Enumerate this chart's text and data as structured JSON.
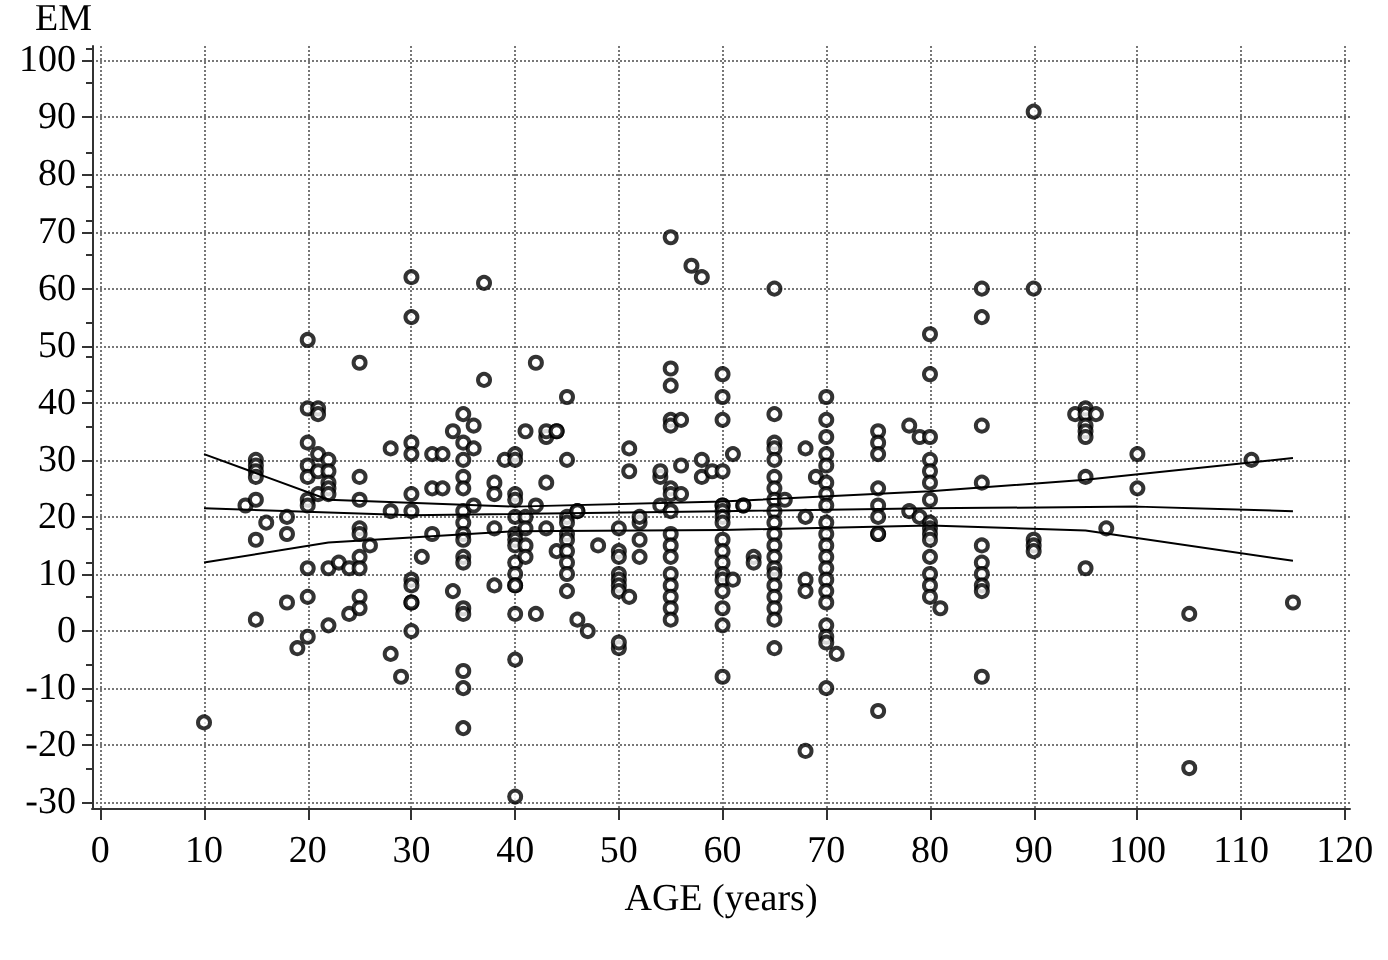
{
  "chart_data": {
    "type": "scatter",
    "xlabel": "AGE (years)",
    "ylabel": "EM",
    "xlim": [
      -0.8,
      120.5
    ],
    "ylim": [
      -31,
      102.5
    ],
    "xticks": [
      0,
      10,
      20,
      30,
      40,
      50,
      60,
      70,
      80,
      90,
      100,
      110,
      120
    ],
    "yticks": [
      -30,
      -20,
      -10,
      0,
      10,
      20,
      30,
      40,
      50,
      60,
      70,
      80,
      90,
      100
    ],
    "grid": true,
    "marker": "circle",
    "series": [
      {
        "color": "#000000",
        "x": [
          10,
          14,
          15,
          15,
          15,
          15,
          15,
          15,
          15,
          16,
          18,
          18,
          18,
          19,
          20,
          20,
          20,
          20,
          20,
          20,
          20,
          20,
          20,
          20,
          21,
          21,
          21,
          21,
          21,
          22,
          22,
          22,
          22,
          22,
          22,
          22,
          23,
          24,
          24,
          25,
          25,
          25,
          25,
          25,
          25,
          25,
          25,
          25,
          26,
          28,
          28,
          28,
          29,
          30,
          30,
          30,
          30,
          30,
          30,
          30,
          30,
          30,
          30,
          30,
          31,
          32,
          32,
          32,
          33,
          33,
          34,
          34,
          35,
          35,
          35,
          35,
          35,
          35,
          35,
          35,
          35,
          35,
          35,
          35,
          35,
          35,
          35,
          35,
          36,
          36,
          36,
          37,
          37,
          38,
          38,
          38,
          38,
          39,
          40,
          40,
          40,
          40,
          40,
          40,
          40,
          40,
          40,
          40,
          40,
          40,
          40,
          40,
          40,
          41,
          41,
          41,
          41,
          41,
          42,
          42,
          42,
          43,
          43,
          43,
          43,
          44,
          44,
          44,
          45,
          45,
          45,
          45,
          45,
          45,
          45,
          45,
          45,
          45,
          46,
          46,
          46,
          47,
          48,
          50,
          50,
          50,
          50,
          50,
          50,
          50,
          50,
          50,
          51,
          51,
          51,
          52,
          52,
          52,
          52,
          54,
          54,
          54,
          55,
          55,
          55,
          55,
          55,
          55,
          55,
          55,
          55,
          55,
          55,
          55,
          55,
          55,
          55,
          55,
          56,
          56,
          56,
          57,
          58,
          58,
          58,
          59,
          60,
          60,
          60,
          60,
          60,
          60,
          60,
          60,
          60,
          60,
          60,
          60,
          60,
          60,
          60,
          60,
          60,
          60,
          61,
          61,
          62,
          62,
          63,
          63,
          65,
          65,
          65,
          65,
          65,
          65,
          65,
          65,
          65,
          65,
          65,
          65,
          65,
          65,
          65,
          65,
          65,
          65,
          65,
          65,
          66,
          68,
          68,
          68,
          68,
          68,
          69,
          70,
          70,
          70,
          70,
          70,
          70,
          70,
          70,
          70,
          70,
          70,
          70,
          70,
          70,
          70,
          70,
          70,
          70,
          70,
          70,
          71,
          75,
          75,
          75,
          75,
          75,
          75,
          75,
          75,
          75,
          78,
          78,
          79,
          79,
          80,
          80,
          80,
          80,
          80,
          80,
          80,
          80,
          80,
          80,
          80,
          80,
          80,
          80,
          80,
          81,
          85,
          85,
          85,
          85,
          85,
          85,
          85,
          85,
          85,
          85,
          90,
          90,
          90,
          90,
          90,
          94,
          95,
          95,
          95,
          95,
          95,
          95,
          95,
          96,
          97,
          100,
          100,
          105,
          105,
          111,
          115
        ],
        "values": [
          -16,
          22,
          30,
          29,
          28,
          27,
          23,
          16,
          2,
          19,
          20,
          17,
          5,
          -3,
          51,
          39,
          33,
          29,
          27,
          23,
          22,
          11,
          6,
          -1,
          39,
          38,
          31,
          24,
          28,
          30,
          28,
          26,
          25,
          24,
          11,
          1,
          12,
          11,
          3,
          47,
          27,
          23,
          18,
          17,
          13,
          11,
          6,
          4,
          15,
          32,
          21,
          -4,
          -8,
          62,
          55,
          33,
          31,
          24,
          21,
          9,
          8,
          5,
          5,
          0,
          13,
          25,
          31,
          17,
          31,
          25,
          35,
          7,
          38,
          33,
          30,
          27,
          25,
          21,
          19,
          17,
          16,
          13,
          12,
          4,
          3,
          -7,
          -10,
          -17,
          36,
          32,
          22,
          61,
          44,
          26,
          24,
          18,
          8,
          30,
          31,
          30,
          24,
          23,
          20,
          17,
          16,
          15,
          12,
          10,
          8,
          8,
          3,
          -5,
          -29,
          35,
          20,
          18,
          15,
          13,
          47,
          22,
          3,
          34,
          35,
          26,
          18,
          35,
          35,
          14,
          41,
          30,
          20,
          19,
          17,
          16,
          14,
          12,
          10,
          7,
          21,
          21,
          2,
          0,
          15,
          18,
          14,
          13,
          10,
          9,
          8,
          7,
          -3,
          -2,
          32,
          28,
          6,
          16,
          19,
          20,
          13,
          22,
          27,
          28,
          69,
          46,
          43,
          37,
          36,
          25,
          24,
          21,
          17,
          15,
          13,
          10,
          8,
          6,
          4,
          2,
          37,
          29,
          24,
          64,
          62,
          30,
          27,
          28,
          45,
          41,
          37,
          28,
          22,
          22,
          21,
          20,
          19,
          16,
          14,
          12,
          10,
          9,
          7,
          4,
          1,
          -8,
          31,
          9,
          22,
          22,
          13,
          12,
          60,
          38,
          33,
          32,
          30,
          27,
          25,
          23,
          21,
          19,
          17,
          15,
          13,
          11,
          10,
          8,
          6,
          4,
          2,
          -3,
          23,
          32,
          20,
          9,
          7,
          -21,
          27,
          41,
          37,
          34,
          31,
          29,
          26,
          24,
          22,
          19,
          17,
          15,
          13,
          11,
          9,
          7,
          5,
          1,
          -1,
          -2,
          -10,
          -4,
          35,
          33,
          31,
          25,
          22,
          20,
          17,
          17,
          -14,
          36,
          21,
          34,
          20,
          52,
          45,
          34,
          30,
          28,
          26,
          23,
          19,
          18,
          17,
          16,
          13,
          10,
          8,
          6,
          4,
          60,
          55,
          36,
          26,
          15,
          12,
          10,
          8,
          7,
          -8,
          91,
          60,
          16,
          15,
          14,
          38,
          39,
          38,
          36,
          35,
          34,
          27,
          11,
          38,
          18,
          31,
          25,
          3,
          -24,
          30,
          5
        ]
      },
      {
        "type": "line",
        "marker": "none",
        "color": "#000000",
        "x": [
          10,
          30,
          60,
          80,
          100,
          115
        ],
        "values": [
          21.5,
          20.3,
          21,
          21.5,
          21.8,
          21
        ]
      },
      {
        "type": "line",
        "marker": "none",
        "color": "#000000",
        "x": [
          10,
          22,
          40,
          60,
          80,
          95,
          115
        ],
        "values": [
          31,
          23,
          21.8,
          22.7,
          24.5,
          26.5,
          30.3
        ]
      },
      {
        "type": "line",
        "marker": "none",
        "color": "#000000",
        "x": [
          10,
          22,
          40,
          60,
          80,
          95,
          115
        ],
        "values": [
          12,
          15.5,
          17.5,
          17.7,
          18.5,
          17.6,
          12.3
        ]
      }
    ]
  }
}
